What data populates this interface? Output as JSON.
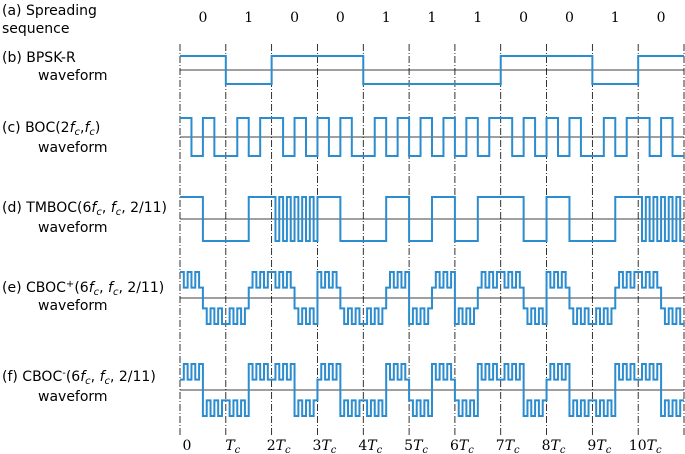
{
  "sequence": {
    "label": [
      [
        {
          "t": "(a) Spreading"
        }
      ],
      [
        {
          "t": "sequence"
        }
      ]
    ],
    "bits": [
      "0",
      "1",
      "0",
      "0",
      "1",
      "1",
      "1",
      "0",
      "0",
      "1",
      "0"
    ]
  },
  "rows": [
    {
      "label": [
        [
          {
            "t": "(b) BPSK-R"
          }
        ],
        [
          {
            "t": "waveform"
          }
        ]
      ]
    },
    {
      "label": [
        [
          {
            "t": "(c) BOC(2"
          },
          {
            "t": "f",
            "i": true
          },
          {
            "t": "c",
            "i": true,
            "sub": true
          },
          {
            "t": ","
          },
          {
            "t": "f",
            "i": true
          },
          {
            "t": "c",
            "i": true,
            "sub": true
          },
          {
            "t": ")"
          }
        ],
        [
          {
            "t": "waveform"
          }
        ]
      ]
    },
    {
      "label": [
        [
          {
            "t": "(d) TMBOC(6"
          },
          {
            "t": "f",
            "i": true
          },
          {
            "t": "c",
            "i": true,
            "sub": true
          },
          {
            "t": ", "
          },
          {
            "t": "f",
            "i": true
          },
          {
            "t": "c",
            "i": true,
            "sub": true
          },
          {
            "t": ", 2/11)"
          }
        ],
        [
          {
            "t": "waveform"
          }
        ]
      ]
    },
    {
      "label": [
        [
          {
            "t": "(e) CBOC"
          },
          {
            "t": "+",
            "sup": true
          },
          {
            "t": "(6"
          },
          {
            "t": "f",
            "i": true
          },
          {
            "t": "c",
            "i": true,
            "sub": true
          },
          {
            "t": ", "
          },
          {
            "t": "f",
            "i": true
          },
          {
            "t": "c",
            "i": true,
            "sub": true
          },
          {
            "t": ", 2/11)"
          }
        ],
        [
          {
            "t": "waveform"
          }
        ]
      ]
    },
    {
      "label": [
        [
          {
            "t": "(f) CBOC"
          },
          {
            "t": "-",
            "sup": true
          },
          {
            "t": "(6"
          },
          {
            "t": "f",
            "i": true
          },
          {
            "t": "c",
            "i": true,
            "sub": true
          },
          {
            "t": ", "
          },
          {
            "t": "f",
            "i": true
          },
          {
            "t": "c",
            "i": true,
            "sub": true
          },
          {
            "t": ", 2/11)"
          }
        ],
        [
          {
            "t": "waveform"
          }
        ]
      ]
    }
  ],
  "time_axis": [
    [
      {
        "t": "0"
      }
    ],
    [
      {
        "t": "T",
        "i": true
      },
      {
        "t": "c",
        "i": true,
        "sub": true
      }
    ],
    [
      {
        "t": "2"
      },
      {
        "t": "T",
        "i": true
      },
      {
        "t": "c",
        "i": true,
        "sub": true
      }
    ],
    [
      {
        "t": "3"
      },
      {
        "t": "T",
        "i": true
      },
      {
        "t": "c",
        "i": true,
        "sub": true
      }
    ],
    [
      {
        "t": "4"
      },
      {
        "t": "T",
        "i": true
      },
      {
        "t": "c",
        "i": true,
        "sub": true
      }
    ],
    [
      {
        "t": "5"
      },
      {
        "t": "T",
        "i": true
      },
      {
        "t": "c",
        "i": true,
        "sub": true
      }
    ],
    [
      {
        "t": "6"
      },
      {
        "t": "T",
        "i": true
      },
      {
        "t": "c",
        "i": true,
        "sub": true
      }
    ],
    [
      {
        "t": "7"
      },
      {
        "t": "T",
        "i": true
      },
      {
        "t": "c",
        "i": true,
        "sub": true
      }
    ],
    [
      {
        "t": "8"
      },
      {
        "t": "T",
        "i": true
      },
      {
        "t": "c",
        "i": true,
        "sub": true
      }
    ],
    [
      {
        "t": "9"
      },
      {
        "t": "T",
        "i": true
      },
      {
        "t": "c",
        "i": true,
        "sub": true
      }
    ],
    [
      {
        "t": "10"
      },
      {
        "t": "T",
        "i": true
      },
      {
        "t": "c",
        "i": true,
        "sub": true
      }
    ]
  ]
}
